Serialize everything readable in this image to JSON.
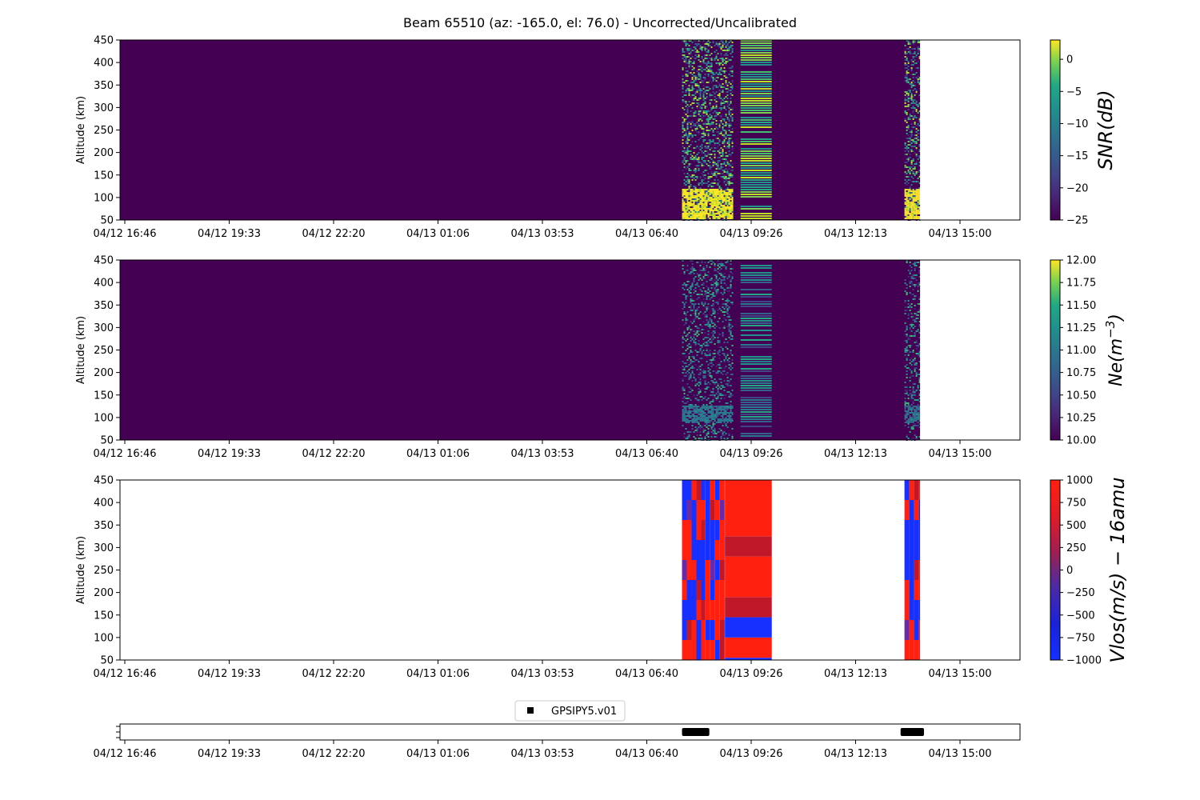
{
  "figure": {
    "title": "Beam 65510 (az: -165.0, el: 76.0) - Uncorrected/Uncalibrated"
  },
  "colors": {
    "background": "#440154",
    "axis": "#000000",
    "vlos_red": "#ff2010",
    "vlos_blue": "#1830ff",
    "vlos_darkred": "#c01828",
    "vlos_purple": "#6a2aa8",
    "gps_marker": "#000000"
  },
  "chart_data": [
    {
      "type": "heatmap",
      "title": "",
      "xlabel": "",
      "ylabel": "Altitude (km)",
      "x_tick_labels": [
        "04/12 16:46",
        "04/12 19:33",
        "04/12 22:20",
        "04/13 01:06",
        "04/13 03:53",
        "04/13 06:40",
        "04/13 09:26",
        "04/13 12:13",
        "04/13 15:00"
      ],
      "x_range_hours": [
        0,
        23.06
      ],
      "ylim": [
        50,
        450
      ],
      "y_ticks": [
        50,
        100,
        150,
        200,
        250,
        300,
        350,
        400,
        450
      ],
      "colorbar": {
        "label": "SNR(dB)",
        "range": [
          -25,
          3
        ],
        "ticks": [
          -25,
          -20,
          -15,
          -10,
          -5,
          0
        ],
        "colormap": "viridis"
      },
      "data_segments": [
        {
          "start_hours": 14.4,
          "end_hours": 15.7,
          "pattern": "speckle"
        },
        {
          "start_hours": 15.7,
          "end_hours": 15.9,
          "pattern": "background"
        },
        {
          "start_hours": 15.9,
          "end_hours": 16.7,
          "pattern": "stripes"
        },
        {
          "start_hours": 16.7,
          "end_hours": 20.1,
          "pattern": "background"
        },
        {
          "start_hours": 20.1,
          "end_hours": 20.5,
          "pattern": "speckle"
        },
        {
          "start_hours": 20.5,
          "end_hours": 23.06,
          "pattern": "no data"
        }
      ],
      "high_snr_altitude_km": [
        55,
        120
      ]
    },
    {
      "type": "heatmap",
      "title": "",
      "xlabel": "",
      "ylabel": "Altitude (km)",
      "x_tick_labels": [
        "04/12 16:46",
        "04/12 19:33",
        "04/12 22:20",
        "04/13 01:06",
        "04/13 03:53",
        "04/13 06:40",
        "04/13 09:26",
        "04/13 12:13",
        "04/13 15:00"
      ],
      "x_range_hours": [
        0,
        23.06
      ],
      "ylim": [
        50,
        450
      ],
      "y_ticks": [
        50,
        100,
        150,
        200,
        250,
        300,
        350,
        400,
        450
      ],
      "colorbar": {
        "label": "Ne(m^-3)",
        "label_main": "Ne(m",
        "label_exp": "−3",
        "label_end": ")",
        "range": [
          10,
          12
        ],
        "ticks": [
          "10.00",
          "10.25",
          "10.50",
          "10.75",
          "11.00",
          "11.25",
          "11.50",
          "11.75",
          "12.00"
        ],
        "colormap": "viridis"
      },
      "data_segments": [
        {
          "start_hours": 14.4,
          "end_hours": 15.7,
          "pattern": "speckle"
        },
        {
          "start_hours": 15.7,
          "end_hours": 15.9,
          "pattern": "background"
        },
        {
          "start_hours": 15.9,
          "end_hours": 16.7,
          "pattern": "stripes"
        },
        {
          "start_hours": 16.7,
          "end_hours": 20.1,
          "pattern": "background"
        },
        {
          "start_hours": 20.1,
          "end_hours": 20.5,
          "pattern": "speckle"
        },
        {
          "start_hours": 20.5,
          "end_hours": 23.06,
          "pattern": "no data"
        }
      ]
    },
    {
      "type": "heatmap",
      "title": "",
      "xlabel": "",
      "ylabel": "Altitude (km)",
      "x_tick_labels": [
        "04/12 16:46",
        "04/12 19:33",
        "04/12 22:20",
        "04/13 01:06",
        "04/13 03:53",
        "04/13 06:40",
        "04/13 09:26",
        "04/13 12:13",
        "04/13 15:00"
      ],
      "x_range_hours": [
        0,
        23.06
      ],
      "ylim": [
        50,
        450
      ],
      "y_ticks": [
        50,
        100,
        150,
        200,
        250,
        300,
        350,
        400,
        450
      ],
      "colorbar": {
        "label": "Vlos(m/s) - 16amu",
        "range": [
          -1000,
          1000
        ],
        "ticks": [
          -1000,
          -750,
          -500,
          -250,
          0,
          250,
          500,
          750,
          1000
        ],
        "colormap": "bwr"
      },
      "data_segments": [
        {
          "start_hours": 14.4,
          "end_hours": 15.0,
          "pattern": "checker"
        },
        {
          "start_hours": 15.0,
          "end_hours": 15.5,
          "pattern": "checker"
        },
        {
          "start_hours": 15.5,
          "end_hours": 16.7,
          "pattern": "blocks"
        },
        {
          "start_hours": 20.1,
          "end_hours": 20.5,
          "pattern": "checker"
        }
      ],
      "block_column": [
        {
          "alt_from": 50,
          "alt_to": 55,
          "vlos": -1000
        },
        {
          "alt_from": 55,
          "alt_to": 100,
          "vlos": 1000
        },
        {
          "alt_from": 100,
          "alt_to": 145,
          "vlos": -1000
        },
        {
          "alt_from": 145,
          "alt_to": 190,
          "vlos": 800
        },
        {
          "alt_from": 190,
          "alt_to": 280,
          "vlos": 1000
        },
        {
          "alt_from": 280,
          "alt_to": 325,
          "vlos": 700
        },
        {
          "alt_from": 325,
          "alt_to": 450,
          "vlos": 1000
        }
      ]
    },
    {
      "type": "scatter",
      "title": "",
      "legend": {
        "entries": [
          "GPSIPY5.v01"
        ],
        "placement": "top-center"
      },
      "x_tick_labels": [
        "04/12 16:46",
        "04/12 19:33",
        "04/12 22:20",
        "04/13 01:06",
        "04/13 03:53",
        "04/13 06:40",
        "04/13 09:26",
        "04/13 12:13",
        "04/13 15:00"
      ],
      "x_range_hours": [
        0,
        23.06
      ],
      "series": [
        {
          "name": "GPSIPY5.v01",
          "intervals_hours": [
            [
              14.4,
              15.1
            ],
            [
              20.0,
              20.6
            ]
          ]
        }
      ]
    }
  ]
}
